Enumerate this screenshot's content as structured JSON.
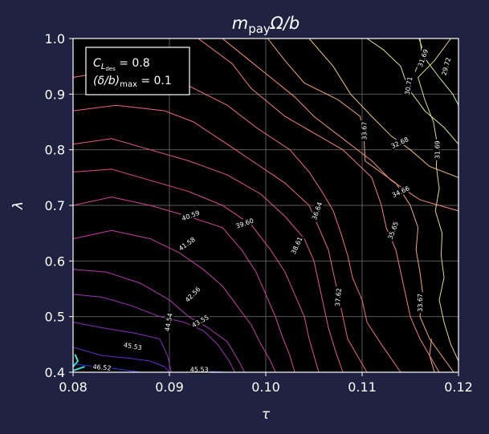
{
  "chart_data": {
    "type": "contour",
    "title": "m_payΩ/b",
    "title_parts": {
      "main": "m",
      "sub": "pay",
      "rest": "Ω/b"
    },
    "xlabel": "τ",
    "ylabel": "λ",
    "xlim": [
      0.08,
      0.12
    ],
    "ylim": [
      0.4,
      1.0
    ],
    "xticks": [
      "0.08",
      "0.09",
      "0.10",
      "0.11",
      "0.12"
    ],
    "xtick_values": [
      0.08,
      0.09,
      0.1,
      0.11,
      0.12
    ],
    "yticks": [
      "0.4",
      "0.5",
      "0.6",
      "0.7",
      "0.8",
      "0.9",
      "1.0"
    ],
    "ytick_values": [
      0.4,
      0.5,
      0.6,
      0.7,
      0.8,
      0.9,
      1.0
    ],
    "grid": true,
    "legend": {
      "placement": "top-left",
      "line1": {
        "var": "C",
        "sub": "L",
        "subsub": "des",
        "value": " = 0.8"
      },
      "line2": {
        "var": "(δ/b)",
        "sub": "max",
        "value": " = 0.1"
      }
    },
    "colors": {
      "background": "#1f2240",
      "plot_bg": "#000000",
      "grid": "#5a5a5a",
      "frame": "#ffffff"
    },
    "contour_levels": [
      {
        "value": "29.72",
        "color": "#c8f0a0",
        "points": [
          [
            0.1159,
            1.0
          ],
          [
            0.1167,
            0.96
          ],
          [
            0.118,
            0.93
          ],
          [
            0.1194,
            0.9
          ],
          [
            0.12,
            0.88
          ]
        ],
        "label": [
          0.1187,
          0.95,
          -75
        ]
      },
      {
        "value": "30.71",
        "color": "#d8e890",
        "points": [
          [
            0.1105,
            1.0
          ],
          [
            0.1122,
            0.98
          ],
          [
            0.114,
            0.95
          ],
          [
            0.1148,
            0.91
          ],
          [
            0.1165,
            0.87
          ],
          [
            0.1185,
            0.84
          ],
          [
            0.12,
            0.81
          ]
        ],
        "label": [
          0.1148,
          0.915,
          -80
        ]
      },
      {
        "value": "31.69",
        "color": "#e6d488",
        "points": [
          [
            0.1192,
            1.0
          ],
          [
            0.1175,
            0.96
          ],
          [
            0.1158,
            0.93
          ],
          [
            0.1165,
            0.89
          ],
          [
            0.1174,
            0.85
          ],
          [
            0.1178,
            0.81
          ],
          [
            0.1177,
            0.77
          ],
          [
            0.118,
            0.73
          ],
          [
            0.1176,
            0.69
          ],
          [
            0.1183,
            0.65
          ],
          [
            0.1182,
            0.61
          ],
          [
            0.1185,
            0.57
          ],
          [
            0.118,
            0.53
          ],
          [
            0.1185,
            0.49
          ],
          [
            0.1192,
            0.45
          ],
          [
            0.12,
            0.42
          ]
        ],
        "label": [
          0.1178,
          0.8,
          -90
        ]
      },
      {
        "value": "31.69",
        "color": "#e6d488",
        "points": [
          [
            0.116,
            1.0
          ],
          [
            0.1162,
            0.97
          ],
          [
            0.1155,
            0.94
          ]
        ],
        "label": [
          0.1163,
          0.965,
          -70
        ]
      },
      {
        "value": "32.68",
        "color": "#f0c080",
        "points": [
          [
            0.1045,
            1.0
          ],
          [
            0.107,
            0.95
          ],
          [
            0.1088,
            0.9
          ],
          [
            0.111,
            0.86
          ],
          [
            0.113,
            0.825
          ],
          [
            0.115,
            0.8
          ],
          [
            0.117,
            0.77
          ],
          [
            0.12,
            0.75
          ]
        ],
        "label": [
          0.1139,
          0.813,
          -25
        ]
      },
      {
        "value": "33.67",
        "color": "#f2a878",
        "points": [
          [
            0.1002,
            1.0
          ],
          [
            0.102,
            0.96
          ],
          [
            0.104,
            0.92
          ],
          [
            0.1075,
            0.89
          ],
          [
            0.1098,
            0.86
          ],
          [
            0.1102,
            0.82
          ],
          [
            0.1103,
            0.78
          ],
          [
            0.1135,
            0.74
          ],
          [
            0.115,
            0.7
          ],
          [
            0.1158,
            0.66
          ],
          [
            0.1156,
            0.62
          ],
          [
            0.116,
            0.58
          ],
          [
            0.1163,
            0.54
          ],
          [
            0.116,
            0.5
          ],
          [
            0.117,
            0.46
          ],
          [
            0.1195,
            0.4
          ]
        ],
        "label": [
          0.1102,
          0.834,
          -90
        ]
      },
      {
        "value": "33.67",
        "color": "#f2a878",
        "points": [
          [
            0.1175,
            0.4
          ],
          [
            0.117,
            0.43
          ],
          [
            0.1172,
            0.46
          ]
        ],
        "label": [
          0.116,
          0.525,
          -90
        ]
      },
      {
        "value": "34.66",
        "color": "#f4907a",
        "points": [
          [
            0.0955,
            1.0
          ],
          [
            0.098,
            0.965
          ],
          [
            0.1005,
            0.93
          ],
          [
            0.103,
            0.895
          ],
          [
            0.105,
            0.86
          ],
          [
            0.108,
            0.82
          ],
          [
            0.111,
            0.78
          ],
          [
            0.113,
            0.745
          ],
          [
            0.116,
            0.71
          ],
          [
            0.12,
            0.69
          ]
        ],
        "label": [
          0.114,
          0.725,
          -25
        ]
      },
      {
        "value": "35.65",
        "color": "#f27f7c",
        "points": [
          [
            0.093,
            1.0
          ],
          [
            0.0965,
            0.955
          ],
          [
            0.0985,
            0.91
          ],
          [
            0.102,
            0.86
          ],
          [
            0.105,
            0.83
          ],
          [
            0.108,
            0.8
          ],
          [
            0.111,
            0.75
          ],
          [
            0.112,
            0.7
          ],
          [
            0.1125,
            0.66
          ],
          [
            0.1135,
            0.62
          ],
          [
            0.114,
            0.58
          ],
          [
            0.1145,
            0.54
          ],
          [
            0.115,
            0.5
          ],
          [
            0.116,
            0.46
          ],
          [
            0.117,
            0.43
          ],
          [
            0.118,
            0.4
          ]
        ],
        "label": [
          0.1132,
          0.655,
          -70
        ]
      },
      {
        "value": "36.64",
        "color": "#f07080",
        "points": [
          [
            0.08,
            0.93
          ],
          [
            0.085,
            0.945
          ],
          [
            0.089,
            0.94
          ],
          [
            0.092,
            0.915
          ],
          [
            0.096,
            0.88
          ],
          [
            0.099,
            0.84
          ],
          [
            0.1025,
            0.8
          ],
          [
            0.1045,
            0.76
          ],
          [
            0.106,
            0.72
          ],
          [
            0.107,
            0.69
          ],
          [
            0.1078,
            0.65
          ],
          [
            0.1085,
            0.61
          ],
          [
            0.109,
            0.57
          ],
          [
            0.11,
            0.53
          ],
          [
            0.1105,
            0.49
          ],
          [
            0.112,
            0.45
          ],
          [
            0.114,
            0.4
          ]
        ],
        "label": [
          0.1053,
          0.69,
          -70
        ]
      },
      {
        "value": "37.62",
        "color": "#ec6484",
        "points": [
          [
            0.08,
            0.87
          ],
          [
            0.0845,
            0.88
          ],
          [
            0.0895,
            0.87
          ],
          [
            0.0925,
            0.85
          ],
          [
            0.096,
            0.81
          ],
          [
            0.099,
            0.775
          ],
          [
            0.102,
            0.74
          ],
          [
            0.1045,
            0.7
          ],
          [
            0.1055,
            0.66
          ],
          [
            0.1065,
            0.62
          ],
          [
            0.107,
            0.58
          ],
          [
            0.1075,
            0.54
          ],
          [
            0.108,
            0.5
          ],
          [
            0.1085,
            0.46
          ],
          [
            0.1095,
            0.43
          ],
          [
            0.1105,
            0.4
          ]
        ],
        "label": [
          0.1075,
          0.535,
          -85
        ]
      },
      {
        "value": "38.61",
        "color": "#e6588a",
        "points": [
          [
            0.08,
            0.81
          ],
          [
            0.084,
            0.82
          ],
          [
            0.088,
            0.8
          ],
          [
            0.092,
            0.78
          ],
          [
            0.096,
            0.755
          ],
          [
            0.0995,
            0.72
          ],
          [
            0.102,
            0.68
          ],
          [
            0.104,
            0.64
          ],
          [
            0.105,
            0.6
          ],
          [
            0.1055,
            0.56
          ],
          [
            0.106,
            0.52
          ],
          [
            0.1065,
            0.48
          ],
          [
            0.1072,
            0.44
          ],
          [
            0.108,
            0.4
          ]
        ],
        "label": [
          0.1032,
          0.628,
          -65
        ]
      },
      {
        "value": "39.60",
        "color": "#de4e90",
        "points": [
          [
            0.08,
            0.76
          ],
          [
            0.084,
            0.765
          ],
          [
            0.088,
            0.745
          ],
          [
            0.092,
            0.725
          ],
          [
            0.0955,
            0.7
          ],
          [
            0.0985,
            0.665
          ],
          [
            0.1005,
            0.62
          ],
          [
            0.102,
            0.58
          ],
          [
            0.103,
            0.54
          ],
          [
            0.104,
            0.5
          ],
          [
            0.1045,
            0.46
          ],
          [
            0.105,
            0.43
          ],
          [
            0.1055,
            0.4
          ]
        ],
        "label": [
          0.0978,
          0.668,
          -20
        ]
      },
      {
        "value": "40.59",
        "color": "#d24898",
        "points": [
          [
            0.08,
            0.7
          ],
          [
            0.084,
            0.715
          ],
          [
            0.088,
            0.7
          ],
          [
            0.092,
            0.68
          ],
          [
            0.0955,
            0.66
          ],
          [
            0.0975,
            0.62
          ],
          [
            0.099,
            0.58
          ],
          [
            0.1,
            0.54
          ],
          [
            0.101,
            0.5
          ],
          [
            0.1018,
            0.46
          ],
          [
            0.1025,
            0.43
          ],
          [
            0.103,
            0.4
          ]
        ],
        "label": [
          0.0922,
          0.682,
          -20
        ]
      },
      {
        "value": "41.58",
        "color": "#c440a2",
        "points": [
          [
            0.08,
            0.64
          ],
          [
            0.084,
            0.655
          ],
          [
            0.088,
            0.64
          ],
          [
            0.091,
            0.615
          ],
          [
            0.0935,
            0.585
          ],
          [
            0.0955,
            0.555
          ],
          [
            0.097,
            0.52
          ],
          [
            0.0985,
            0.485
          ],
          [
            0.0995,
            0.45
          ],
          [
            0.1005,
            0.42
          ],
          [
            0.101,
            0.4
          ]
        ],
        "label": [
          0.0918,
          0.631,
          -35
        ]
      },
      {
        "value": "42.56",
        "color": "#b03aac",
        "points": [
          [
            0.08,
            0.585
          ],
          [
            0.0835,
            0.58
          ],
          [
            0.087,
            0.56
          ],
          [
            0.09,
            0.53
          ],
          [
            0.092,
            0.5
          ],
          [
            0.094,
            0.48
          ],
          [
            0.096,
            0.455
          ],
          [
            0.0972,
            0.42
          ],
          [
            0.0978,
            0.4
          ]
        ],
        "label": [
          0.0924,
          0.54,
          -45
        ]
      },
      {
        "value": "43.55",
        "color": "#9a36b6",
        "points": [
          [
            0.08,
            0.54
          ],
          [
            0.083,
            0.535
          ],
          [
            0.086,
            0.52
          ],
          [
            0.089,
            0.5
          ],
          [
            0.0915,
            0.49
          ],
          [
            0.0935,
            0.475
          ],
          [
            0.095,
            0.45
          ],
          [
            0.0962,
            0.42
          ],
          [
            0.0968,
            0.4
          ]
        ],
        "label": [
          0.0932,
          0.492,
          -30
        ]
      },
      {
        "value": "44.54",
        "color": "#8232c0",
        "points": [
          [
            0.08,
            0.49
          ],
          [
            0.083,
            0.48
          ],
          [
            0.0865,
            0.47
          ],
          [
            0.089,
            0.46
          ],
          [
            0.0898,
            0.43
          ],
          [
            0.0902,
            0.4
          ]
        ],
        "label": [
          0.0899,
          0.49,
          -80
        ]
      },
      {
        "value": "45.53",
        "color": "#6030cc",
        "points": [
          [
            0.08,
            0.445
          ],
          [
            0.083,
            0.43
          ],
          [
            0.086,
            0.425
          ],
          [
            0.088,
            0.42
          ],
          [
            0.0895,
            0.41
          ],
          [
            0.09,
            0.4
          ]
        ],
        "label": [
          0.0862,
          0.447,
          10
        ]
      },
      {
        "value": "45.53",
        "color": "#6030cc",
        "points": [
          [
            0.092,
            0.4
          ],
          [
            0.0935,
            0.402
          ],
          [
            0.096,
            0.4
          ]
        ],
        "label": [
          0.0931,
          0.405,
          0
        ]
      },
      {
        "value": "46.52",
        "color": "#2c3ad8",
        "points": [
          [
            0.08,
            0.415
          ],
          [
            0.0825,
            0.41
          ],
          [
            0.085,
            0.405
          ],
          [
            0.087,
            0.4
          ]
        ],
        "label": [
          0.083,
          0.409,
          5
        ]
      },
      {
        "value": "",
        "color": "#30e0e0",
        "points": [
          [
            0.08,
            0.403
          ],
          [
            0.0812,
            0.41
          ]
        ],
        "label": null
      },
      {
        "value": "",
        "color": "#30e0e0",
        "points": [
          [
            0.08,
            0.41
          ],
          [
            0.0805,
            0.42
          ],
          [
            0.0802,
            0.432
          ]
        ],
        "label": null
      }
    ]
  }
}
